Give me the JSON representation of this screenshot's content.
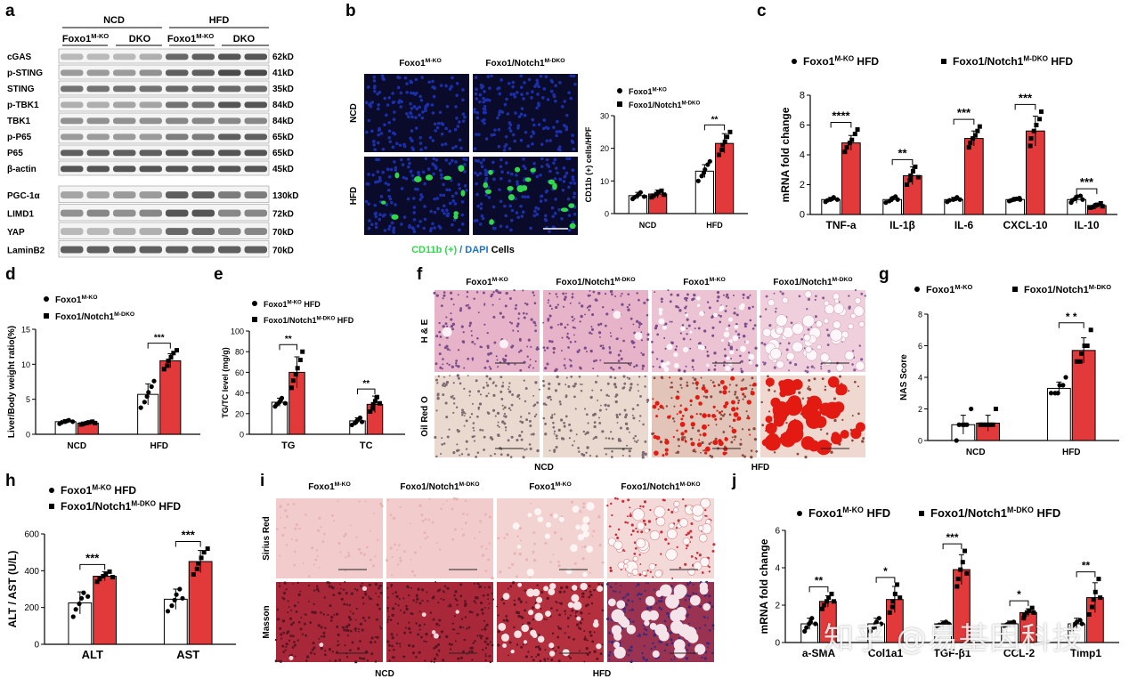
{
  "panel_labels": [
    "a",
    "b",
    "c",
    "d",
    "e",
    "f",
    "g",
    "h",
    "i",
    "j"
  ],
  "western_blot": {
    "groups": [
      {
        "label": "NCD"
      },
      {
        "label": "HFD"
      }
    ],
    "subgroups": [
      {
        "label": "Foxo1",
        "sup": "M-KO"
      },
      {
        "label": "DKO",
        "sup": ""
      },
      {
        "label": "Foxo1",
        "sup": "M-KO"
      },
      {
        "label": "DKO",
        "sup": ""
      }
    ],
    "proteins_top": [
      {
        "name": "cGAS",
        "kd": "62kD",
        "lanes": [
          0.35,
          0.35,
          0.35,
          0.4,
          0.75,
          0.8,
          0.85,
          0.85
        ]
      },
      {
        "name": "p-STING",
        "kd": "41kD",
        "lanes": [
          0.5,
          0.5,
          0.5,
          0.55,
          0.8,
          0.8,
          0.9,
          0.9
        ]
      },
      {
        "name": "STING",
        "kd": "35kD",
        "lanes": [
          0.7,
          0.7,
          0.7,
          0.7,
          0.75,
          0.75,
          0.75,
          0.75
        ]
      },
      {
        "name": "p-TBK1",
        "kd": "84kD",
        "lanes": [
          0.4,
          0.4,
          0.45,
          0.45,
          0.7,
          0.7,
          0.85,
          0.85
        ]
      },
      {
        "name": "TBK1",
        "kd": "84kD",
        "lanes": [
          0.55,
          0.55,
          0.55,
          0.55,
          0.6,
          0.6,
          0.6,
          0.6
        ]
      },
      {
        "name": "p-P65",
        "kd": "65kD",
        "lanes": [
          0.5,
          0.5,
          0.5,
          0.5,
          0.65,
          0.65,
          0.8,
          0.8
        ]
      },
      {
        "name": "P65",
        "kd": "65kD",
        "lanes": [
          0.8,
          0.8,
          0.8,
          0.8,
          0.85,
          0.85,
          0.85,
          0.85
        ]
      },
      {
        "name": "β-actin",
        "kd": "45kD",
        "lanes": [
          0.85,
          0.85,
          0.85,
          0.85,
          0.85,
          0.85,
          0.85,
          0.85
        ]
      }
    ],
    "proteins_bottom": [
      {
        "name": "PGC-1α",
        "kd": "130kD",
        "lanes": [
          0.45,
          0.45,
          0.5,
          0.5,
          0.8,
          0.8,
          0.65,
          0.65
        ]
      },
      {
        "name": "LIMD1",
        "kd": "72kD",
        "lanes": [
          0.55,
          0.6,
          0.55,
          0.6,
          0.85,
          0.85,
          0.6,
          0.6
        ]
      },
      {
        "name": "YAP",
        "kd": "70kD",
        "lanes": [
          0.35,
          0.35,
          0.4,
          0.4,
          0.75,
          0.75,
          0.6,
          0.6
        ]
      },
      {
        "name": "LaminB2",
        "kd": "70kD",
        "lanes": [
          0.8,
          0.8,
          0.8,
          0.8,
          0.8,
          0.8,
          0.8,
          0.8
        ]
      }
    ]
  },
  "if_images": {
    "columns": [
      {
        "label": "Foxo1",
        "sup": "M-KO"
      },
      {
        "label": "Foxo1/Notch1",
        "sup": "M-DKO"
      }
    ],
    "rows": [
      "NCD",
      "HFD"
    ],
    "caption_green": "CD11b (+)",
    "caption_sep": " / ",
    "caption_blue": "DAPI",
    "caption_black": " Cells"
  },
  "histo_f": {
    "columns": [
      {
        "label": "Foxo1",
        "sup": "M-KO"
      },
      {
        "label": "Foxo1/Notch1",
        "sup": "M-DKO"
      },
      {
        "label": "Foxo1",
        "sup": "M-KO"
      },
      {
        "label": "Foxo1/Notch1",
        "sup": "M-DKO"
      }
    ],
    "rows": [
      "H & E",
      "Oil Red O"
    ],
    "bottom": [
      "NCD",
      "HFD"
    ]
  },
  "histo_i": {
    "columns": [
      {
        "label": "Foxo1",
        "sup": "M-KO"
      },
      {
        "label": "Foxo1/Notch1",
        "sup": "M-DKO"
      },
      {
        "label": "Foxo1",
        "sup": "M-KO"
      },
      {
        "label": "Foxo1/Notch1",
        "sup": "M-DKO"
      }
    ],
    "rows": [
      "Sirius Red",
      "Masson"
    ],
    "bottom": [
      "NCD",
      "HFD"
    ]
  },
  "watermark": "知乎 @易基因科技",
  "colors": {
    "red": "#e23a3a",
    "white": "#ffffff",
    "dapi": "#1b2fa8",
    "cd11b": "#2fd84a",
    "he": "#e7b3c8",
    "oil": "#e9d9cf",
    "oil_red": "#e21a12",
    "sirius": "#f2cccc",
    "masson": "#a8283a"
  },
  "chart_data": [
    {
      "id": "b",
      "type": "bar",
      "ylabel": "CD11b (+) cells/HPF",
      "ylim": [
        0,
        30
      ],
      "yticks": [
        0,
        10,
        20,
        30
      ],
      "categories": [
        "NCD",
        "HFD"
      ],
      "legend": [
        {
          "name": "Foxo1",
          "sup": "M-KO",
          "marker": "circle"
        },
        {
          "name": "Foxo1/Notch1",
          "sup": "M-DKO",
          "marker": "square"
        }
      ],
      "series": [
        {
          "values": [
            5.5,
            13
          ],
          "errors": [
            1,
            2
          ],
          "points": [
            [
              4.5,
              5,
              5.5,
              6,
              6.5,
              5.2
            ],
            [
              10,
              11.5,
              12.5,
              13.5,
              15,
              16
            ]
          ]
        },
        {
          "values": [
            6,
            21.5
          ],
          "errors": [
            1.2,
            3
          ],
          "points": [
            [
              5,
              5.5,
              6,
              6.5,
              7,
              5.8
            ],
            [
              18,
              19.5,
              21,
              22,
              23.5,
              25
            ]
          ]
        }
      ],
      "sig": [
        {
          "cat": 1,
          "text": "**"
        }
      ]
    },
    {
      "id": "c",
      "type": "bar",
      "ylabel": "mRNA fold change",
      "ylim": [
        0,
        8
      ],
      "yticks": [
        0,
        2,
        4,
        6,
        8
      ],
      "categories": [
        "TNF-a",
        "IL-1β",
        "IL-6",
        "CXCL-10",
        "IL-10"
      ],
      "legend": [
        {
          "name": "Foxo1",
          "sup": "M-KO",
          "suffix": " HFD",
          "marker": "circle"
        },
        {
          "name": "Foxo1/Notch1",
          "sup": "M-DKO",
          "suffix": " HFD",
          "marker": "square"
        }
      ],
      "series": [
        {
          "values": [
            1,
            1,
            1,
            1,
            1
          ],
          "errors": [
            0.15,
            0.15,
            0.15,
            0.15,
            0.25
          ],
          "points": [
            [
              0.85,
              0.95,
              1,
              1.05,
              1.15,
              1
            ],
            [
              0.8,
              0.9,
              1,
              1.1,
              1.2,
              1
            ],
            [
              0.85,
              0.95,
              1,
              1.05,
              1.15,
              1
            ],
            [
              0.9,
              0.95,
              1,
              1.05,
              1.1,
              1
            ],
            [
              0.8,
              0.95,
              1.05,
              1.2,
              1.25,
              1
            ]
          ]
        },
        {
          "values": [
            4.8,
            2.6,
            5.1,
            5.6,
            0.6
          ],
          "errors": [
            0.5,
            0.6,
            0.5,
            1.0,
            0.15
          ],
          "points": [
            [
              4.2,
              4.5,
              4.8,
              5,
              5.4,
              5.7
            ],
            [
              2,
              2.3,
              2.6,
              2.9,
              3.2,
              2.5
            ],
            [
              4.5,
              4.8,
              5.1,
              5.3,
              5.6,
              5.9
            ],
            [
              4.6,
              5.1,
              5.6,
              6,
              6.4,
              6.9
            ],
            [
              0.45,
              0.5,
              0.6,
              0.65,
              0.75,
              0.55
            ]
          ]
        }
      ],
      "sig": [
        {
          "cat": 0,
          "text": "****"
        },
        {
          "cat": 1,
          "text": "**"
        },
        {
          "cat": 2,
          "text": "***"
        },
        {
          "cat": 3,
          "text": "***"
        },
        {
          "cat": 4,
          "text": "***"
        }
      ]
    },
    {
      "id": "d",
      "type": "bar",
      "ylabel": "Liver/Body weight ratio(%)",
      "ylim": [
        0,
        15
      ],
      "yticks": [
        0,
        5,
        10,
        15
      ],
      "categories": [
        "NCD",
        "HFD"
      ],
      "legend": [
        {
          "name": "Foxo1",
          "sup": "M-KO",
          "marker": "circle"
        },
        {
          "name": "Foxo1/Notch1",
          "sup": "M-DKO",
          "marker": "square"
        }
      ],
      "series": [
        {
          "values": [
            1.8,
            5.7
          ],
          "errors": [
            0.3,
            1.5
          ],
          "points": [
            [
              1.5,
              1.7,
              1.8,
              1.9,
              2,
              1.8
            ],
            [
              3.8,
              4.6,
              5.4,
              6,
              6.8,
              7.6
            ]
          ]
        },
        {
          "values": [
            1.6,
            10.5
          ],
          "errors": [
            0.2,
            1.0
          ],
          "points": [
            [
              1.4,
              1.5,
              1.6,
              1.7,
              1.8,
              1.6
            ],
            [
              9.3,
              9.8,
              10.5,
              11,
              11.6,
              12
            ]
          ]
        }
      ],
      "sig": [
        {
          "cat": 1,
          "text": "***"
        }
      ]
    },
    {
      "id": "e",
      "type": "bar",
      "ylabel": "TG/TC level (mg/g)",
      "ylim": [
        0,
        100
      ],
      "yticks": [
        0,
        20,
        40,
        60,
        80,
        100
      ],
      "categories": [
        "TG",
        "TC"
      ],
      "legend": [
        {
          "name": "Foxo1",
          "sup": "M-KO",
          "suffix": " HFD",
          "marker": "circle"
        },
        {
          "name": "Foxo1/Notch1",
          "sup": "M-DKO",
          "suffix": " HFD",
          "marker": "square"
        }
      ],
      "series": [
        {
          "values": [
            31,
            13
          ],
          "errors": [
            4,
            3
          ],
          "points": [
            [
              27,
              29,
              31,
              33,
              35,
              30
            ],
            [
              9,
              11,
              13,
              14,
              16,
              12
            ]
          ]
        },
        {
          "values": [
            60,
            29
          ],
          "errors": [
            15,
            8
          ],
          "points": [
            [
              45,
              52,
              58,
              64,
              72,
              80
            ],
            [
              22,
              25,
              29,
              32,
              36,
              30
            ]
          ]
        }
      ],
      "sig": [
        {
          "cat": 0,
          "text": "**"
        },
        {
          "cat": 1,
          "text": "**"
        }
      ]
    },
    {
      "id": "g",
      "type": "bar",
      "ylabel": "NAS Score",
      "ylim": [
        0,
        8
      ],
      "yticks": [
        0,
        2,
        4,
        6,
        8
      ],
      "categories": [
        "NCD",
        "HFD"
      ],
      "legend": [
        {
          "name": "Foxo1",
          "sup": "M-KO",
          "marker": "circle"
        },
        {
          "name": "Foxo1/Notch1",
          "sup": "M-DKO",
          "marker": "square"
        }
      ],
      "series": [
        {
          "values": [
            1.0,
            3.3
          ],
          "errors": [
            0.6,
            0.4
          ],
          "points": [
            [
              0,
              1,
              1,
              1,
              1,
              2
            ],
            [
              3,
              3,
              3,
              3.5,
              3.5,
              4
            ]
          ]
        },
        {
          "values": [
            1.1,
            5.7
          ],
          "errors": [
            0.5,
            0.8
          ],
          "points": [
            [
              1,
              1,
              1,
              1,
              1,
              2
            ],
            [
              5,
              5,
              5.5,
              6,
              6,
              7
            ]
          ]
        }
      ],
      "sig": [
        {
          "cat": 1,
          "text": "* *"
        }
      ]
    },
    {
      "id": "h",
      "type": "bar",
      "ylabel": "ALT / AST (U/L)",
      "ylim": [
        0,
        600
      ],
      "yticks": [
        0,
        200,
        400,
        600
      ],
      "categories": [
        "ALT",
        "AST"
      ],
      "legend": [
        {
          "name": "Foxo1",
          "sup": "M-KO",
          "suffix": " HFD",
          "marker": "circle"
        },
        {
          "name": "Foxo1/Notch1",
          "sup": "M-DKO",
          "suffix": " HFD",
          "marker": "square"
        }
      ],
      "series": [
        {
          "values": [
            225,
            245
          ],
          "errors": [
            60,
            55
          ],
          "points": [
            [
              150,
              190,
              220,
              250,
              280,
              260
            ],
            [
              180,
              210,
              240,
              270,
              300,
              250
            ]
          ]
        },
        {
          "values": [
            370,
            450
          ],
          "errors": [
            25,
            60
          ],
          "points": [
            [
              340,
              355,
              370,
              380,
              395,
              365
            ],
            [
              380,
              410,
              440,
              470,
              500,
              520
            ]
          ]
        }
      ],
      "sig": [
        {
          "cat": 0,
          "text": "***"
        },
        {
          "cat": 1,
          "text": "***"
        }
      ]
    },
    {
      "id": "j",
      "type": "bar",
      "ylabel": "mRNA fold change",
      "ylim": [
        0,
        6
      ],
      "yticks": [
        0,
        2,
        4,
        6
      ],
      "categories": [
        "a-SMA",
        "Col1a1",
        "TGF-β1",
        "CCL-2",
        "Timp1"
      ],
      "legend": [
        {
          "name": "Foxo1",
          "sup": "M-KO",
          "suffix": " HFD",
          "marker": "circle"
        },
        {
          "name": "Foxo1/Notch1",
          "sup": "M-DKO",
          "suffix": " HFD",
          "marker": "square"
        }
      ],
      "series": [
        {
          "values": [
            1,
            1,
            1,
            1,
            1
          ],
          "errors": [
            0.3,
            0.3,
            0.15,
            0.15,
            0.3
          ],
          "points": [
            [
              0.6,
              0.8,
              1,
              1.1,
              1.3,
              1
            ],
            [
              0.6,
              0.8,
              1,
              1.1,
              1.3,
              1
            ],
            [
              0.9,
              0.95,
              1,
              1.05,
              1.1,
              1
            ],
            [
              0.9,
              0.95,
              1,
              1.05,
              1.1,
              1
            ],
            [
              0.7,
              0.9,
              1,
              1.1,
              1.2,
              1
            ]
          ]
        },
        {
          "values": [
            2.2,
            2.3,
            3.9,
            1.6,
            2.4
          ],
          "errors": [
            0.3,
            0.7,
            0.8,
            0.2,
            0.8
          ],
          "points": [
            [
              1.8,
              2,
              2.2,
              2.4,
              2.6,
              2.2
            ],
            [
              1.6,
              1.9,
              2.2,
              2.6,
              3.1,
              2.4
            ],
            [
              3,
              3.4,
              3.9,
              4.3,
              4.9,
              3.7
            ],
            [
              1.3,
              1.45,
              1.6,
              1.7,
              1.85,
              1.6
            ],
            [
              1.5,
              1.9,
              2.3,
              2.7,
              3.4,
              2.4
            ]
          ]
        }
      ],
      "sig": [
        {
          "cat": 0,
          "text": "**"
        },
        {
          "cat": 1,
          "text": "*"
        },
        {
          "cat": 2,
          "text": "***"
        },
        {
          "cat": 3,
          "text": "*"
        },
        {
          "cat": 4,
          "text": "**"
        }
      ]
    }
  ]
}
